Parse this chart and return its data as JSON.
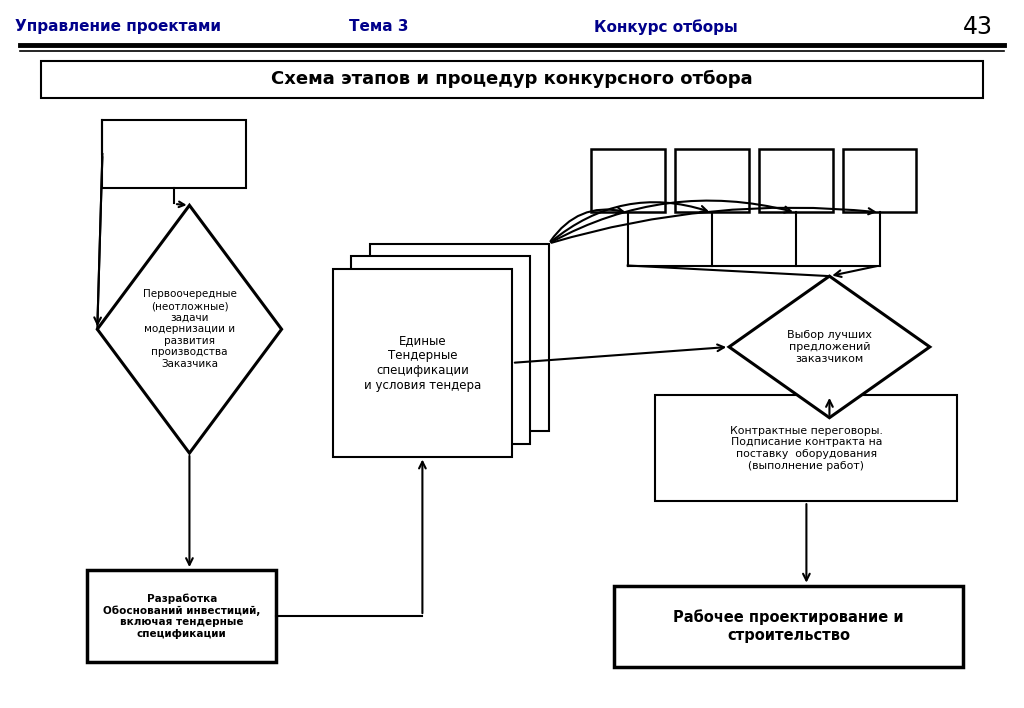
{
  "title": "Схема этапов и процедур конкурсного отбора",
  "header_left": "Управление проектами",
  "header_center": "Тема 3",
  "header_right": "Конкурс отборы",
  "header_page": "43",
  "bg_color": "#ffffff",
  "line_color": "#000000",
  "header_text_color": "#00008B"
}
